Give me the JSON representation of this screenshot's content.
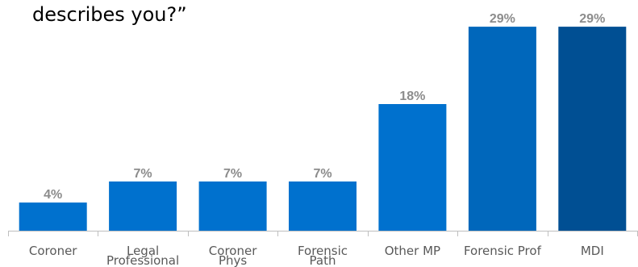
{
  "chart_data": {
    "type": "bar",
    "title": "describes you?”",
    "categories": [
      [
        "Coroner"
      ],
      [
        "Legal",
        "Professional"
      ],
      [
        "Coroner",
        "Phys"
      ],
      [
        "Forensic",
        "Path"
      ],
      [
        "Other MP"
      ],
      [
        "Forensic Prof"
      ],
      [
        "MDI"
      ]
    ],
    "values": [
      4,
      7,
      7,
      7,
      18,
      29,
      29
    ],
    "value_labels": [
      "4%",
      "7%",
      "7%",
      "7%",
      "18%",
      "29%",
      "29%"
    ],
    "bar_colors": [
      "#0071ce",
      "#0071ce",
      "#0071ce",
      "#0071ce",
      "#0071ce",
      "#0067bb",
      "#004f93"
    ],
    "ylim": [
      0,
      30.5
    ],
    "grid": false,
    "legend": "none"
  }
}
